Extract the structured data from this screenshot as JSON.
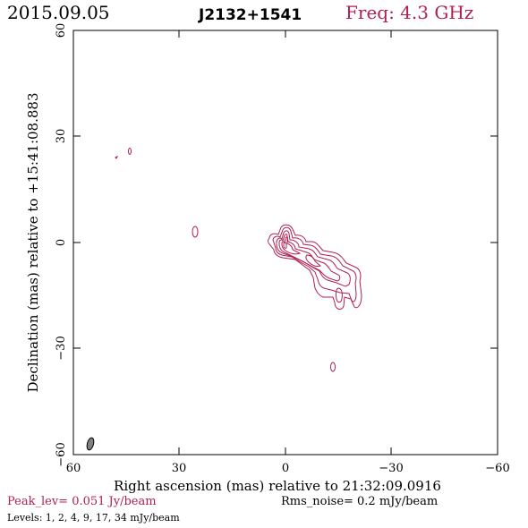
{
  "header": {
    "date": "2015.09.05",
    "source": "J2132+1541",
    "frequency": "Freq: 4.3 GHz"
  },
  "axes": {
    "xlabel": "Right ascension (mas) relative to 21:32:09.0916",
    "ylabel": "Declination (mas) relative to +15:41:08.883",
    "x_ticks": [
      "60",
      "30",
      "0",
      "−30",
      "−60"
    ],
    "y_ticks": [
      "60",
      "30",
      "0",
      "−30",
      "−60"
    ],
    "xlim": [
      60,
      -60
    ],
    "ylim": [
      -60,
      60
    ]
  },
  "footer": {
    "peak": "Peak_lev=  0.051 Jy/beam",
    "rms": "Rms_noise=  0.2 mJy/beam",
    "levels": "Levels:   1,   2,   4,   9,  17,  34  mJy/beam"
  },
  "colors": {
    "contour": "#b02050",
    "beam": "#808080"
  }
}
